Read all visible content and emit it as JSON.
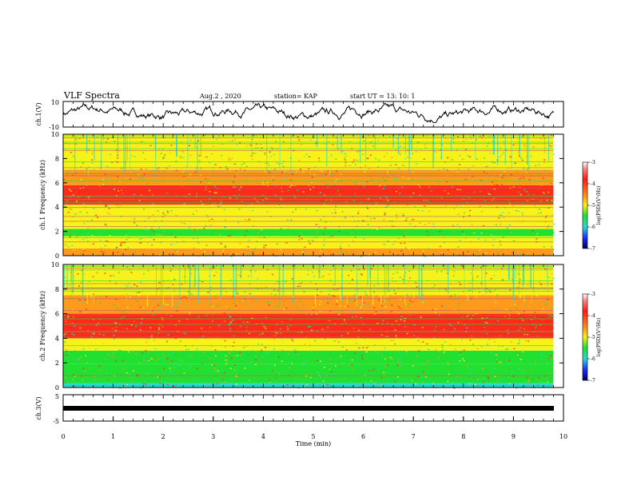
{
  "header": {
    "title": "VLF Spectra",
    "date": "Aug.2 , 2020",
    "station": "station= KAP",
    "start": "start UT = 13: 10: 1"
  },
  "colors": {
    "red": "#ff2a1a",
    "orange": "#ff9a1a",
    "yellow": "#f7f31a",
    "green": "#22e030",
    "cyan": "#2ad9d0",
    "blue": "#1a2bff",
    "trace": "#000000"
  },
  "chart_data": [
    {
      "type": "line",
      "name": "ch1-waveform",
      "ylabel": "ch.1(V)",
      "ylim": [
        -10,
        10
      ],
      "ytick_labels": [
        "-10",
        "10"
      ],
      "xlim": [
        0,
        10
      ],
      "description_values": "noisy waveform oscillating roughly between -6 and 8 V over 0-9.8 min"
    },
    {
      "type": "heatmap",
      "name": "ch1-spectrogram",
      "ylabel": "ch.1 Frequency (kHz)",
      "ylim": [
        0,
        10
      ],
      "ytick_labels": [
        "0",
        "2",
        "4",
        "6",
        "8",
        "10"
      ],
      "xlim": [
        0,
        9.8
      ],
      "bands": [
        {
          "from": 0,
          "to": 0.6,
          "level": -4.3
        },
        {
          "from": 0.6,
          "to": 1.6,
          "level": -4.6
        },
        {
          "from": 1.6,
          "to": 2.2,
          "level": -5.2
        },
        {
          "from": 2.2,
          "to": 3.2,
          "level": -4.5
        },
        {
          "from": 3.2,
          "to": 4.2,
          "level": -4.8
        },
        {
          "from": 4.2,
          "to": 5.8,
          "level": -3.8
        },
        {
          "from": 5.8,
          "to": 7.0,
          "level": -4.2
        },
        {
          "from": 7.0,
          "to": 10.0,
          "level": -4.5
        }
      ],
      "colorbar": {
        "label": "log(PSD)(V²/Hz)",
        "range": [
          -7,
          -3
        ],
        "tick_labels": [
          "-3",
          "-4",
          "-5",
          "-6",
          "-7"
        ]
      }
    },
    {
      "type": "heatmap",
      "name": "ch2-spectrogram",
      "ylabel": "ch.2 Frequency (kHz)",
      "ylim": [
        0,
        10
      ],
      "ytick_labels": [
        "0",
        "2",
        "4",
        "6",
        "8",
        "10"
      ],
      "xlim": [
        0,
        9.8
      ],
      "bands": [
        {
          "from": 0,
          "to": 0.4,
          "level": -5.6
        },
        {
          "from": 0.4,
          "to": 1.9,
          "level": -5.3
        },
        {
          "from": 1.9,
          "to": 3.0,
          "level": -4.9
        },
        {
          "from": 3.0,
          "to": 4.0,
          "level": -4.4
        },
        {
          "from": 4.0,
          "to": 6.0,
          "level": -3.8
        },
        {
          "from": 6.0,
          "to": 7.5,
          "level": -4.2
        },
        {
          "from": 7.5,
          "to": 10.0,
          "level": -4.6
        }
      ],
      "colorbar": {
        "label": "log(PSD)(V²/Hz)",
        "range": [
          -7,
          -3
        ],
        "tick_labels": [
          "-3",
          "-4",
          "-5",
          "-6",
          "-7"
        ]
      }
    },
    {
      "type": "line",
      "name": "ch3-trace",
      "ylabel": "ch.3(V)",
      "ylim": [
        -5,
        5
      ],
      "ytick_labels": [
        "-5",
        "5"
      ],
      "xlim": [
        0,
        10
      ],
      "value": 0,
      "xlabel": "Time (min)",
      "xtick_labels": [
        "0",
        "1",
        "2",
        "3",
        "4",
        "5",
        "6",
        "7",
        "8",
        "9",
        "10"
      ]
    }
  ]
}
